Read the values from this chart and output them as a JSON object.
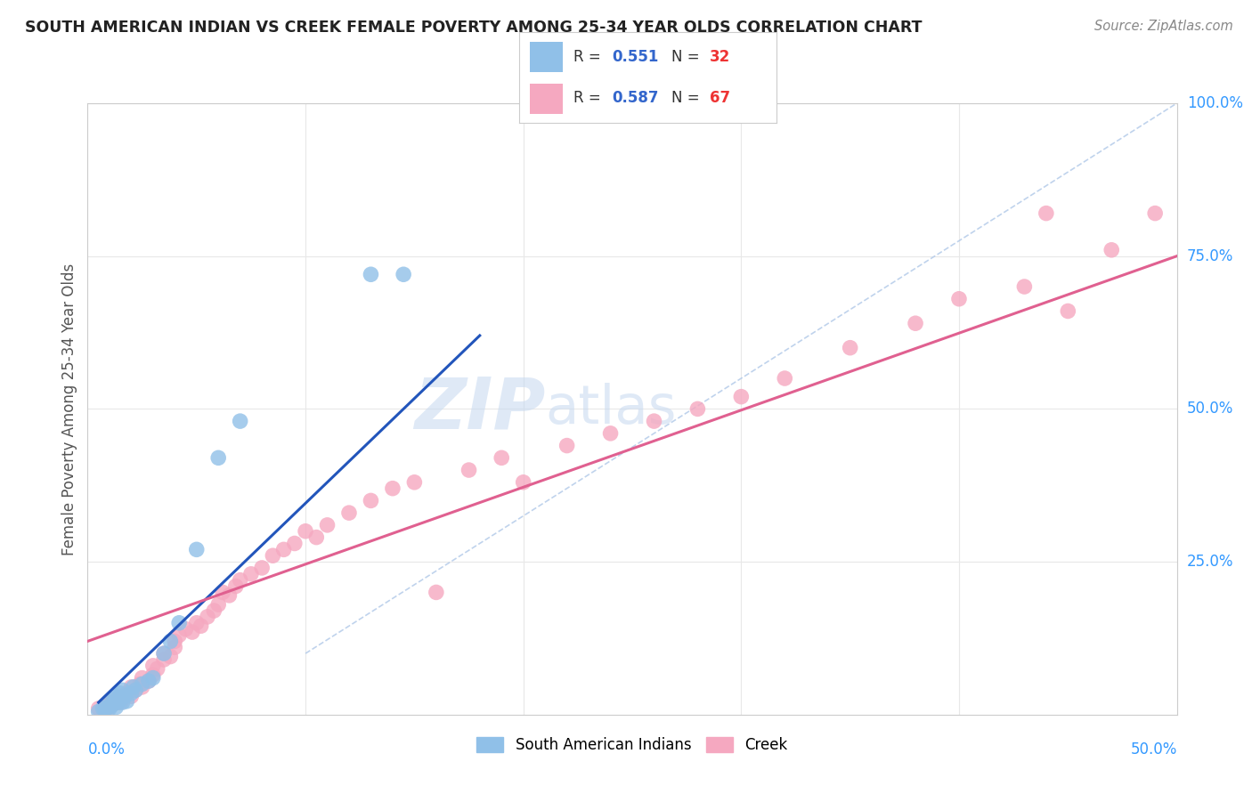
{
  "title": "SOUTH AMERICAN INDIAN VS CREEK FEMALE POVERTY AMONG 25-34 YEAR OLDS CORRELATION CHART",
  "source": "Source: ZipAtlas.com",
  "ylabel_label": "Female Poverty Among 25-34 Year Olds",
  "xmin": 0.0,
  "xmax": 0.5,
  "ymin": 0.0,
  "ymax": 1.0,
  "ytick_values": [
    0.25,
    0.5,
    0.75,
    1.0
  ],
  "ytick_labels": [
    "25.0%",
    "50.0%",
    "75.0%",
    "100.0%"
  ],
  "xtick_left_label": "0.0%",
  "xtick_right_label": "50.0%",
  "legend_bottom": [
    "South American Indians",
    "Creek"
  ],
  "r_blue": "0.551",
  "n_blue": "32",
  "r_pink": "0.587",
  "n_pink": "67",
  "watermark_part1": "ZIP",
  "watermark_part2": "atlas",
  "blue_scatter_x": [
    0.005,
    0.007,
    0.008,
    0.009,
    0.01,
    0.01,
    0.011,
    0.012,
    0.012,
    0.013,
    0.013,
    0.014,
    0.015,
    0.015,
    0.016,
    0.016,
    0.017,
    0.018,
    0.02,
    0.021,
    0.022,
    0.025,
    0.028,
    0.03,
    0.035,
    0.038,
    0.042,
    0.05,
    0.06,
    0.07,
    0.13,
    0.145
  ],
  "blue_scatter_y": [
    0.005,
    0.01,
    0.008,
    0.012,
    0.01,
    0.02,
    0.015,
    0.018,
    0.025,
    0.012,
    0.03,
    0.02,
    0.025,
    0.035,
    0.02,
    0.04,
    0.03,
    0.022,
    0.035,
    0.045,
    0.04,
    0.05,
    0.055,
    0.06,
    0.1,
    0.12,
    0.15,
    0.27,
    0.42,
    0.48,
    0.72,
    0.72
  ],
  "pink_scatter_x": [
    0.005,
    0.008,
    0.01,
    0.01,
    0.012,
    0.013,
    0.015,
    0.015,
    0.016,
    0.018,
    0.02,
    0.02,
    0.022,
    0.024,
    0.025,
    0.025,
    0.028,
    0.03,
    0.03,
    0.032,
    0.035,
    0.035,
    0.038,
    0.04,
    0.04,
    0.042,
    0.045,
    0.048,
    0.05,
    0.052,
    0.055,
    0.058,
    0.06,
    0.062,
    0.065,
    0.068,
    0.07,
    0.075,
    0.08,
    0.085,
    0.09,
    0.095,
    0.1,
    0.105,
    0.11,
    0.12,
    0.13,
    0.14,
    0.15,
    0.16,
    0.175,
    0.19,
    0.2,
    0.22,
    0.24,
    0.26,
    0.28,
    0.3,
    0.32,
    0.35,
    0.38,
    0.4,
    0.43,
    0.44,
    0.45,
    0.47,
    0.49
  ],
  "pink_scatter_y": [
    0.01,
    0.015,
    0.012,
    0.02,
    0.018,
    0.025,
    0.02,
    0.03,
    0.025,
    0.035,
    0.03,
    0.045,
    0.04,
    0.05,
    0.045,
    0.06,
    0.055,
    0.065,
    0.08,
    0.075,
    0.09,
    0.1,
    0.095,
    0.11,
    0.12,
    0.13,
    0.14,
    0.135,
    0.15,
    0.145,
    0.16,
    0.17,
    0.18,
    0.2,
    0.195,
    0.21,
    0.22,
    0.23,
    0.24,
    0.26,
    0.27,
    0.28,
    0.3,
    0.29,
    0.31,
    0.33,
    0.35,
    0.37,
    0.38,
    0.2,
    0.4,
    0.42,
    0.38,
    0.44,
    0.46,
    0.48,
    0.5,
    0.52,
    0.55,
    0.6,
    0.64,
    0.68,
    0.7,
    0.82,
    0.66,
    0.76,
    0.82
  ],
  "blue_line_x0": 0.005,
  "blue_line_x1": 0.18,
  "blue_line_y0": 0.02,
  "blue_line_y1": 0.62,
  "pink_line_x0": 0.0,
  "pink_line_x1": 0.5,
  "pink_line_y0": 0.12,
  "pink_line_y1": 0.75,
  "ref_line_x0": 0.1,
  "ref_line_x1": 0.5,
  "ref_line_y0": 0.1,
  "ref_line_y1": 1.0,
  "blue_scatter_color": "#90c0e8",
  "pink_scatter_color": "#f5a8c0",
  "blue_line_color": "#2255bb",
  "pink_line_color": "#e06090",
  "ref_line_color": "#b0c8e8",
  "grid_color": "#e8e8e8",
  "tick_label_color": "#3399ff",
  "title_color": "#222222",
  "source_color": "#888888",
  "ylabel_color": "#555555",
  "legend_r_color": "#3366cc",
  "legend_n_color": "#ee3333"
}
